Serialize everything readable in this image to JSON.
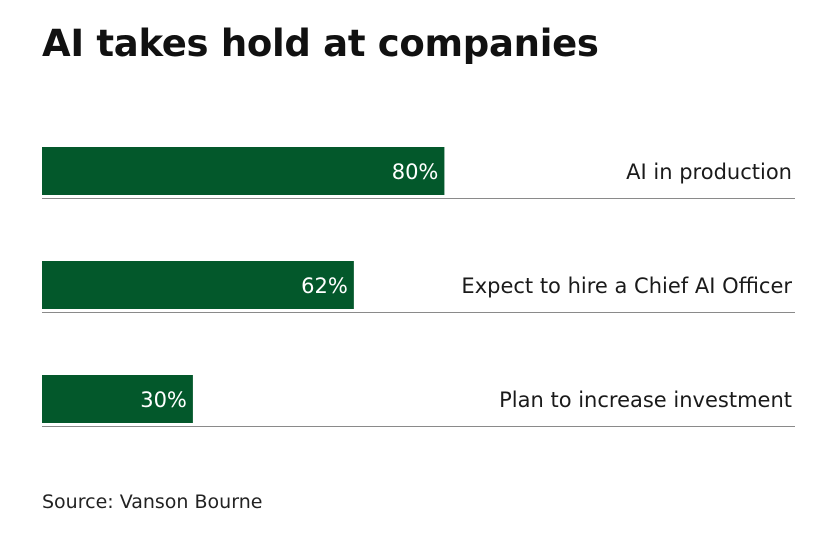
{
  "title": "AI takes hold at companies",
  "source": "Source: Vanson Bourne",
  "colors": {
    "bar": "#03582b",
    "bar_label": "#ffffff",
    "rule": "#8a8a8a",
    "text": "#1a1a1a"
  },
  "chart_data": {
    "type": "bar",
    "orientation": "horizontal",
    "categories": [
      "AI in production",
      "Expect to hire a Chief AI Officer",
      "Plan to increase investment"
    ],
    "values": [
      80,
      62,
      30
    ],
    "value_labels": [
      "80%",
      "62%",
      "30%"
    ],
    "unit": "%",
    "title": "AI takes hold at companies",
    "xlabel": "",
    "ylabel": "",
    "xlim": [
      0,
      100
    ],
    "grid": false,
    "legend": "none"
  }
}
